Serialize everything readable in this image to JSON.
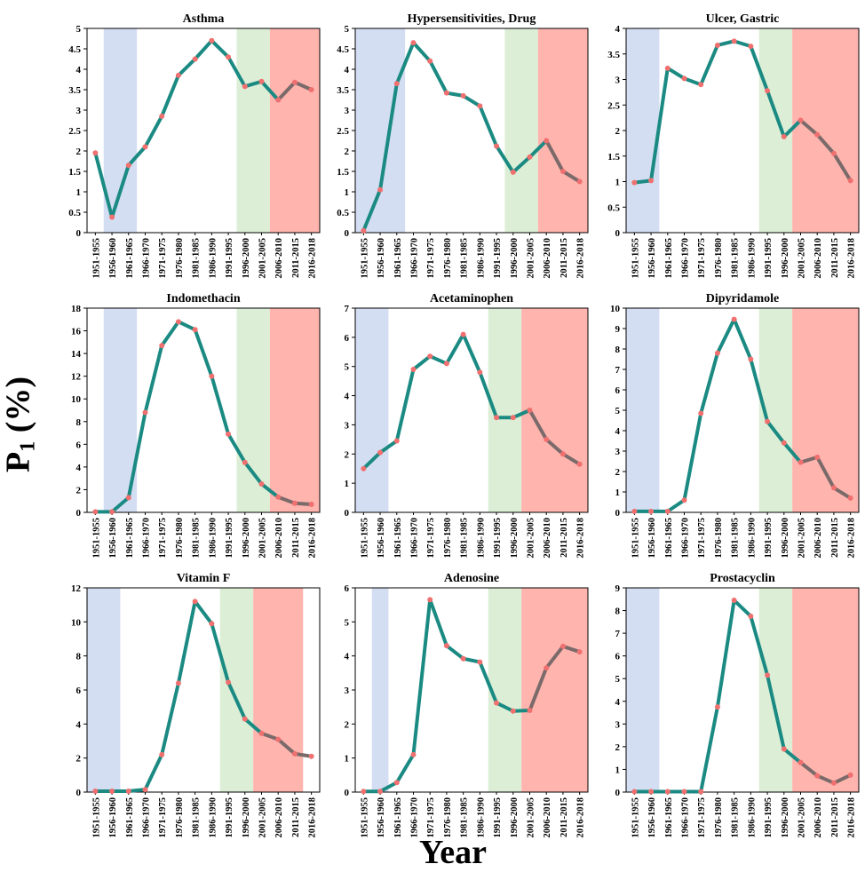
{
  "figure": {
    "ylabel_main": "P",
    "ylabel_sub": "1",
    "ylabel_unit": "(%)",
    "xlabel": "Year"
  },
  "colors": {
    "line_main": "#1a8a82",
    "line_late": "#7a6a6a",
    "marker": "#f07070",
    "band_blue": "#d3def3",
    "band_green": "#dcefd6",
    "band_red": "#ffb4ae"
  },
  "chart_data": [
    {
      "type": "line",
      "title": "Asthma",
      "categories": [
        "1951-1955",
        "1956-1960",
        "1961-1965",
        "1966-1970",
        "1971-1975",
        "1976-1980",
        "1981-1985",
        "1986-1990",
        "1991-1995",
        "1996-2000",
        "2001-2005",
        "2006-2010",
        "2011-2015",
        "2016-2018"
      ],
      "values": [
        1.95,
        0.38,
        1.65,
        2.1,
        2.85,
        3.85,
        4.25,
        4.7,
        4.3,
        3.58,
        3.7,
        3.25,
        3.68,
        3.5
      ],
      "ylim": [
        0,
        5
      ],
      "yticks": [
        0,
        0.5,
        1,
        1.5,
        2,
        2.5,
        3,
        3.5,
        4,
        4.5,
        5
      ],
      "bands": [
        {
          "color": "blue",
          "from": 1,
          "to": 3
        },
        {
          "color": "green",
          "from": 9,
          "to": 11
        },
        {
          "color": "red",
          "from": 11,
          "to": 14
        }
      ]
    },
    {
      "type": "line",
      "title": "Hypersensitivities, Drug",
      "categories": [
        "1951-1955",
        "1956-1960",
        "1961-1965",
        "1966-1970",
        "1971-1975",
        "1976-1980",
        "1981-1985",
        "1986-1990",
        "1991-1995",
        "1996-2000",
        "2001-2005",
        "2006-2010",
        "2011-2015",
        "2016-2018"
      ],
      "values": [
        0.05,
        1.05,
        3.65,
        4.65,
        4.2,
        3.42,
        3.35,
        3.1,
        2.12,
        1.48,
        1.85,
        2.25,
        1.5,
        1.25
      ],
      "ylim": [
        0,
        5
      ],
      "yticks": [
        0,
        0.5,
        1,
        1.5,
        2,
        2.5,
        3,
        3.5,
        4,
        4.5,
        5
      ],
      "bands": [
        {
          "color": "blue",
          "from": 0,
          "to": 3
        },
        {
          "color": "green",
          "from": 9,
          "to": 11
        },
        {
          "color": "red",
          "from": 11,
          "to": 14
        }
      ]
    },
    {
      "type": "line",
      "title": "Ulcer, Gastric",
      "categories": [
        "1951-1955",
        "1956-1960",
        "1961-1965",
        "1966-1970",
        "1971-1975",
        "1976-1980",
        "1981-1985",
        "1986-1990",
        "1991-1995",
        "1996-2000",
        "2001-2005",
        "2006-2010",
        "2011-2015",
        "2016-2018"
      ],
      "values": [
        0.98,
        1.02,
        3.22,
        3.02,
        2.9,
        3.67,
        3.75,
        3.65,
        2.78,
        1.88,
        2.2,
        1.92,
        1.55,
        1.02
      ],
      "ylim": [
        0,
        4
      ],
      "yticks": [
        0,
        0.5,
        1,
        1.5,
        2,
        2.5,
        3,
        3.5,
        4
      ],
      "bands": [
        {
          "color": "blue",
          "from": 0,
          "to": 2
        },
        {
          "color": "green",
          "from": 8,
          "to": 10
        },
        {
          "color": "red",
          "from": 10,
          "to": 14
        }
      ]
    },
    {
      "type": "line",
      "title": "Indomethacin",
      "categories": [
        "1951-1955",
        "1956-1960",
        "1961-1965",
        "1966-1970",
        "1971-1975",
        "1976-1980",
        "1981-1985",
        "1986-1990",
        "1991-1995",
        "1996-2000",
        "2001-2005",
        "2006-2010",
        "2011-2015",
        "2016-2018"
      ],
      "values": [
        0.05,
        0.05,
        1.3,
        8.8,
        14.7,
        16.8,
        16.1,
        12.0,
        6.9,
        4.4,
        2.5,
        1.35,
        0.8,
        0.7
      ],
      "ylim": [
        0,
        18
      ],
      "yticks": [
        0,
        2,
        4,
        6,
        8,
        10,
        12,
        14,
        16,
        18
      ],
      "bands": [
        {
          "color": "blue",
          "from": 1,
          "to": 3
        },
        {
          "color": "green",
          "from": 9,
          "to": 11
        },
        {
          "color": "red",
          "from": 11,
          "to": 14
        }
      ]
    },
    {
      "type": "line",
      "title": "Acetaminophen",
      "categories": [
        "1951-1955",
        "1956-1960",
        "1961-1965",
        "1966-1970",
        "1971-1975",
        "1976-1980",
        "1981-1985",
        "1986-1990",
        "1991-1995",
        "1996-2000",
        "2001-2005",
        "2006-2010",
        "2011-2015",
        "2016-2018"
      ],
      "values": [
        1.5,
        2.05,
        2.45,
        4.9,
        5.35,
        5.1,
        6.1,
        4.8,
        3.25,
        3.25,
        3.5,
        2.5,
        2.0,
        1.65
      ],
      "ylim": [
        0,
        7
      ],
      "yticks": [
        0,
        1,
        2,
        3,
        4,
        5,
        6,
        7
      ],
      "bands": [
        {
          "color": "blue",
          "from": 0,
          "to": 2
        },
        {
          "color": "green",
          "from": 8,
          "to": 10
        },
        {
          "color": "red",
          "from": 10,
          "to": 14
        }
      ]
    },
    {
      "type": "line",
      "title": "Dipyridamole",
      "categories": [
        "1951-1955",
        "1956-1960",
        "1961-1965",
        "1966-1970",
        "1971-1975",
        "1976-1980",
        "1981-1985",
        "1986-1990",
        "1991-1995",
        "1996-2000",
        "2001-2005",
        "2006-2010",
        "2011-2015",
        "2016-2018"
      ],
      "values": [
        0.05,
        0.05,
        0.05,
        0.6,
        4.85,
        7.8,
        9.45,
        7.5,
        4.45,
        3.4,
        2.45,
        2.7,
        1.2,
        0.7
      ],
      "ylim": [
        0,
        10
      ],
      "yticks": [
        0,
        1,
        2,
        3,
        4,
        5,
        6,
        7,
        8,
        9,
        10
      ],
      "bands": [
        {
          "color": "blue",
          "from": 0,
          "to": 2
        },
        {
          "color": "green",
          "from": 8,
          "to": 10
        },
        {
          "color": "red",
          "from": 10,
          "to": 14
        }
      ]
    },
    {
      "type": "line",
      "title": "Vitamin F",
      "categories": [
        "1951-1955",
        "1956-1960",
        "1961-1965",
        "1966-1970",
        "1971-1975",
        "1976-1980",
        "1981-1985",
        "1986-1990",
        "1991-1995",
        "1996-2000",
        "2001-2005",
        "2006-2010",
        "2011-2015",
        "2016-2018"
      ],
      "values": [
        0.05,
        0.05,
        0.05,
        0.15,
        2.2,
        6.4,
        11.2,
        9.9,
        6.45,
        4.3,
        3.45,
        3.1,
        2.25,
        2.1
      ],
      "ylim": [
        0,
        12
      ],
      "yticks": [
        0,
        2,
        4,
        6,
        8,
        10,
        12
      ],
      "bands": [
        {
          "color": "blue",
          "from": 0,
          "to": 2
        },
        {
          "color": "green",
          "from": 8,
          "to": 10
        },
        {
          "color": "red",
          "from": 10,
          "to": 13
        }
      ]
    },
    {
      "type": "line",
      "title": "Adenosine",
      "categories": [
        "1951-1955",
        "1956-1960",
        "1961-1965",
        "1966-1970",
        "1971-1975",
        "1976-1980",
        "1981-1985",
        "1986-1990",
        "1991-1995",
        "1996-2000",
        "2001-2005",
        "2006-2010",
        "2011-2015",
        "2016-2018"
      ],
      "values": [
        0.02,
        0.02,
        0.28,
        1.1,
        5.65,
        4.3,
        3.92,
        3.82,
        2.62,
        2.38,
        2.4,
        3.65,
        4.28,
        4.12
      ],
      "ylim": [
        0,
        6
      ],
      "yticks": [
        0,
        1,
        2,
        3,
        4,
        5,
        6
      ],
      "bands": [
        {
          "color": "blue",
          "from": 1,
          "to": 2
        },
        {
          "color": "green",
          "from": 8,
          "to": 10
        },
        {
          "color": "red",
          "from": 10,
          "to": 14
        }
      ]
    },
    {
      "type": "line",
      "title": "Prostacyclin",
      "categories": [
        "1951-1955",
        "1956-1960",
        "1961-1965",
        "1966-1970",
        "1971-1975",
        "1976-1980",
        "1981-1985",
        "1986-1990",
        "1991-1995",
        "1996-2000",
        "2001-2005",
        "2006-2010",
        "2011-2015",
        "2016-2018"
      ],
      "values": [
        0.02,
        0.02,
        0.02,
        0.02,
        0.02,
        3.75,
        8.45,
        7.75,
        5.15,
        1.9,
        1.3,
        0.72,
        0.4,
        0.75
      ],
      "ylim": [
        0,
        9
      ],
      "yticks": [
        0,
        1,
        2,
        3,
        4,
        5,
        6,
        7,
        8,
        9
      ],
      "bands": [
        {
          "color": "blue",
          "from": 0,
          "to": 2
        },
        {
          "color": "green",
          "from": 8,
          "to": 10
        },
        {
          "color": "red",
          "from": 10,
          "to": 14
        }
      ]
    }
  ]
}
